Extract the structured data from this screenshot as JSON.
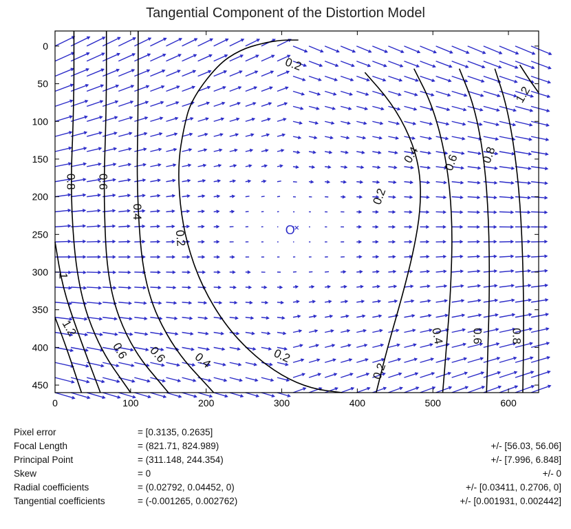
{
  "chart_data": {
    "type": "contour",
    "title": "Tangential Component of the Distortion Model",
    "xlim": [
      0,
      640
    ],
    "ylim": [
      460,
      -20
    ],
    "x_ticks": [
      "0",
      "100",
      "200",
      "300",
      "400",
      "500",
      "600"
    ],
    "y_ticks": [
      "0",
      "50",
      "100",
      "150",
      "200",
      "250",
      "300",
      "350",
      "400",
      "450"
    ],
    "x_tick_values": [
      0,
      100,
      200,
      300,
      400,
      500,
      600
    ],
    "y_tick_values": [
      0,
      50,
      100,
      150,
      200,
      250,
      300,
      350,
      400,
      450
    ],
    "principal_point": {
      "x": 311.148,
      "y": 244.354,
      "label": "O"
    },
    "contours": [
      {
        "level": "0.2",
        "points": [
          [
            322,
            -8
          ],
          [
            300,
            -8
          ],
          [
            275,
            -4
          ],
          [
            245,
            5
          ],
          [
            215,
            25
          ],
          [
            180,
            72
          ],
          [
            170,
            110
          ],
          [
            163,
            155
          ],
          [
            165,
            210
          ],
          [
            175,
            265
          ],
          [
            195,
            320
          ],
          [
            225,
            370
          ],
          [
            260,
            408
          ],
          [
            300,
            438
          ],
          [
            340,
            455
          ],
          [
            380,
            460
          ]
        ]
      },
      {
        "level": "0.2",
        "points": [
          [
            410,
            35
          ],
          [
            445,
            75
          ],
          [
            470,
            120
          ],
          [
            483,
            165
          ],
          [
            484,
            215
          ],
          [
            475,
            270
          ],
          [
            460,
            330
          ],
          [
            440,
            400
          ],
          [
            425,
            460
          ]
        ]
      },
      {
        "level": "0.4",
        "points": [
          [
            475,
            30
          ],
          [
            500,
            80
          ],
          [
            518,
            150
          ],
          [
            526,
            230
          ],
          [
            524,
            320
          ],
          [
            518,
            400
          ],
          [
            513,
            460
          ]
        ]
      },
      {
        "level": "0.6",
        "points": [
          [
            535,
            30
          ],
          [
            555,
            80
          ],
          [
            568,
            150
          ],
          [
            574,
            230
          ],
          [
            575,
            320
          ],
          [
            573,
            400
          ],
          [
            571,
            460
          ]
        ]
      },
      {
        "level": "0.8",
        "points": [
          [
            582,
            30
          ],
          [
            598,
            80
          ],
          [
            610,
            150
          ],
          [
            617,
            230
          ],
          [
            620,
            320
          ],
          [
            620,
            400
          ],
          [
            619,
            460
          ]
        ]
      },
      {
        "level": "1.2",
        "points": [
          [
            615,
            25
          ],
          [
            628,
            45
          ],
          [
            640,
            62
          ]
        ]
      },
      {
        "level": "0.4",
        "points": [
          [
            110,
            -20
          ],
          [
            110,
            80
          ],
          [
            108,
            200
          ],
          [
            118,
            320
          ],
          [
            155,
            400
          ],
          [
            210,
            460
          ]
        ]
      },
      {
        "level": "0.6",
        "points": [
          [
            68,
            -20
          ],
          [
            68,
            80
          ],
          [
            64,
            200
          ],
          [
            70,
            320
          ],
          [
            100,
            400
          ],
          [
            150,
            460
          ]
        ]
      },
      {
        "level": "0.8",
        "points": [
          [
            25,
            -20
          ],
          [
            25,
            80
          ],
          [
            20,
            200
          ],
          [
            30,
            320
          ],
          [
            58,
            400
          ],
          [
            100,
            460
          ]
        ]
      },
      {
        "level": "1",
        "points": [
          [
            0,
            260
          ],
          [
            10,
            320
          ],
          [
            30,
            380
          ],
          [
            60,
            460
          ]
        ]
      },
      {
        "level": "1.2",
        "points": [
          [
            0,
            360
          ],
          [
            15,
            400
          ],
          [
            35,
            460
          ]
        ]
      }
    ],
    "contour_labels": [
      {
        "text": "0.2",
        "x": 315,
        "y": 25,
        "angle": 20
      },
      {
        "text": "0.2",
        "x": 165,
        "y": 255,
        "angle": 85
      },
      {
        "text": "0.2",
        "x": 430,
        "y": 200,
        "angle": -70
      },
      {
        "text": "0.2",
        "x": 300,
        "y": 412,
        "angle": 25
      },
      {
        "text": "0.2",
        "x": 430,
        "y": 432,
        "angle": -70
      },
      {
        "text": "0.4",
        "x": 472,
        "y": 145,
        "angle": -60
      },
      {
        "text": "0.6",
        "x": 525,
        "y": 155,
        "angle": -70
      },
      {
        "text": "0.8",
        "x": 575,
        "y": 145,
        "angle": -70
      },
      {
        "text": "1.2",
        "x": 620,
        "y": 65,
        "angle": -60
      },
      {
        "text": "0.8",
        "x": 20,
        "y": 180,
        "angle": 90
      },
      {
        "text": "0.6",
        "x": 63,
        "y": 180,
        "angle": 90
      },
      {
        "text": "0.4",
        "x": 108,
        "y": 220,
        "angle": 90
      },
      {
        "text": "1",
        "x": 10,
        "y": 305,
        "angle": 90
      },
      {
        "text": "1.2",
        "x": 18,
        "y": 375,
        "angle": 60
      },
      {
        "text": "0.6",
        "x": 85,
        "y": 405,
        "angle": 60
      },
      {
        "text": "0.6",
        "x": 135,
        "y": 410,
        "angle": 50
      },
      {
        "text": "0.4",
        "x": 195,
        "y": 418,
        "angle": 40
      },
      {
        "text": "0.4",
        "x": 505,
        "y": 385,
        "angle": 80
      },
      {
        "text": "0.6",
        "x": 558,
        "y": 385,
        "angle": 90
      },
      {
        "text": "0.8",
        "x": 610,
        "y": 385,
        "angle": 90
      }
    ],
    "arrow_color": "#2b2bc8",
    "contour_color": "#000000"
  },
  "stats": [
    {
      "label": "Pixel error",
      "value": "= [0.3135, 0.2635]",
      "uncertainty": ""
    },
    {
      "label": "Focal Length",
      "value": "= (821.71, 824.989)",
      "uncertainty": "+/- [56.03, 56.06]"
    },
    {
      "label": "Principal Point",
      "value": "= (311.148, 244.354)",
      "uncertainty": "+/- [7.996, 6.848]"
    },
    {
      "label": "Skew",
      "value": "= 0",
      "uncertainty": "+/- 0"
    },
    {
      "label": "Radial coefficients",
      "value": "= (0.02792, 0.04452, 0)",
      "uncertainty": "+/- [0.03411, 0.2706, 0]"
    },
    {
      "label": "Tangential coefficients",
      "value": "= (-0.001265, 0.002762)",
      "uncertainty": "+/- [0.001931, 0.002442]"
    }
  ]
}
